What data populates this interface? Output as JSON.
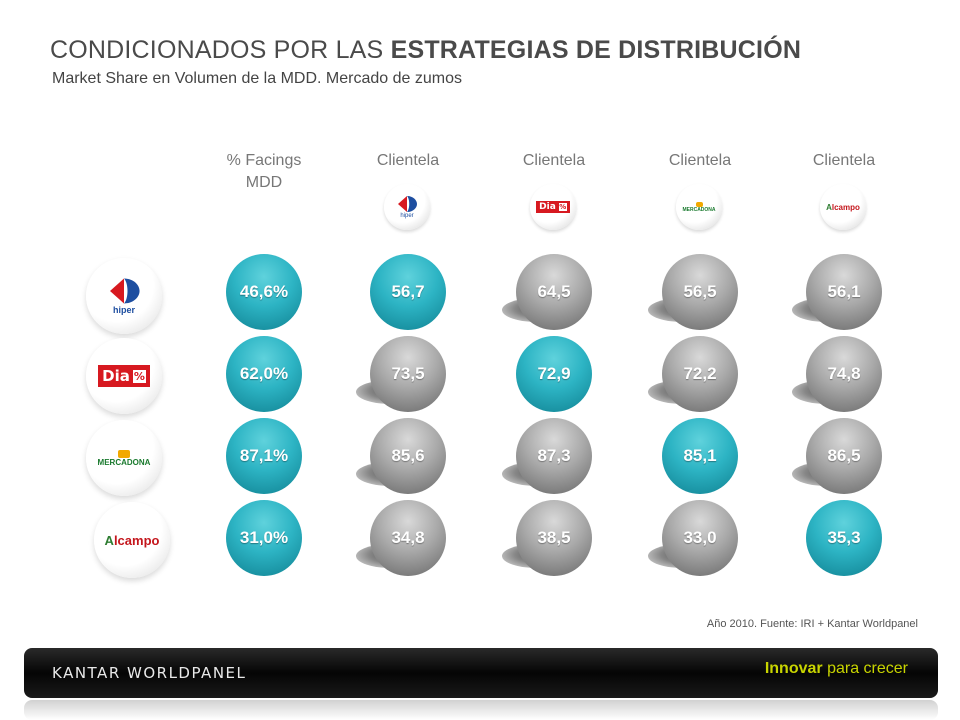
{
  "title": {
    "regular": "CONDICIONADOS POR LAS ",
    "bold": "ESTRATEGIAS DE DISTRIBUCIÓN"
  },
  "subtitle": "Market Share en Volumen de la MDD. Mercado de zumos",
  "columns": [
    {
      "label_1": "% Facings",
      "label_2": "MDD"
    },
    {
      "label_1": "Clientela",
      "logo": "carrefour-hiper-logo"
    },
    {
      "label_1": "Clientela",
      "logo": "dia-logo"
    },
    {
      "label_1": "Clientela",
      "logo": "mercadona-logo"
    },
    {
      "label_1": "Clientela",
      "logo": "alcampo-logo"
    }
  ],
  "logos": {
    "carrefour_sub": "hiper",
    "dia_text": "Dia",
    "dia_mark": "%",
    "mercadona_text": "MERCADONA",
    "alcampo_a": "A",
    "alcampo_text": "lcampo"
  },
  "rows": [
    {
      "retailer": "carrefour-hiper",
      "values": [
        "46,6%",
        "56,7",
        "64,5",
        "56,5",
        "56,1"
      ],
      "highlight": [
        true,
        true,
        false,
        false,
        false
      ]
    },
    {
      "retailer": "dia",
      "values": [
        "62,0%",
        "73,5",
        "72,9",
        "72,2",
        "74,8"
      ],
      "highlight": [
        true,
        false,
        true,
        false,
        false
      ]
    },
    {
      "retailer": "mercadona",
      "values": [
        "87,1%",
        "85,6",
        "87,3",
        "85,1",
        "86,5"
      ],
      "highlight": [
        true,
        false,
        false,
        true,
        false
      ]
    },
    {
      "retailer": "alcampo",
      "values": [
        "31,0%",
        "34,8",
        "38,5",
        "33,0",
        "35,3"
      ],
      "highlight": [
        true,
        false,
        false,
        false,
        true
      ]
    }
  ],
  "colors": {
    "highlight": "#2db4c4",
    "neutral": "#9a9a9a",
    "slogan": "#c8d400"
  },
  "footnote": "Año 2010. Fuente: IRI + Kantar Worldpanel",
  "footer": {
    "brand": "KANTAR WORLDPANEL",
    "slogan_bold": "Innovar",
    "slogan_rest": " para crecer"
  }
}
